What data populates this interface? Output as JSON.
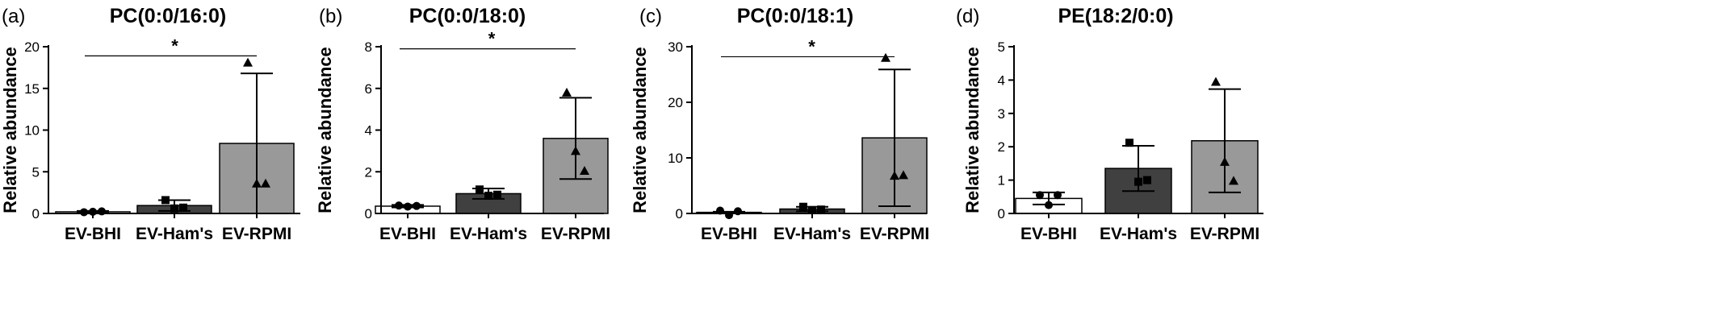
{
  "chart_data": [
    {
      "type": "bar",
      "panel": "(a)",
      "title": "PC(0:0/16:0)",
      "ylabel": "Relative abundance",
      "categories": [
        "EV-BHI",
        "EV-Ham's",
        "EV-RPMI"
      ],
      "ylim": [
        0,
        20
      ],
      "yticks": [
        0,
        5,
        10,
        15,
        20
      ],
      "means": [
        0.2,
        0.95,
        8.4
      ],
      "sd": [
        0.1,
        0.65,
        8.4
      ],
      "points": [
        [
          0.15,
          0.2,
          0.25
        ],
        [
          1.6,
          0.6,
          0.7
        ],
        [
          18.1,
          3.6,
          3.6
        ]
      ],
      "bar_colors": [
        "#ffffff",
        "#404040",
        "#999999"
      ],
      "markers": [
        "circle",
        "square",
        "triangle"
      ],
      "significance": {
        "from": 0,
        "to": 2,
        "label": "*",
        "y": 18.9
      }
    },
    {
      "type": "bar",
      "panel": "(b)",
      "title": "PC(0:0/18:0)",
      "ylabel": "Relative abundance",
      "categories": [
        "EV-BHI",
        "EV-Ham's",
        "EV-RPMI"
      ],
      "ylim": [
        0,
        8
      ],
      "yticks": [
        0,
        2,
        4,
        6,
        8
      ],
      "means": [
        0.35,
        0.95,
        3.6
      ],
      "sd": [
        0.06,
        0.25,
        1.95
      ],
      "points": [
        [
          0.38,
          0.33,
          0.36
        ],
        [
          1.15,
          0.85,
          0.9
        ],
        [
          5.8,
          3.0,
          2.05
        ]
      ],
      "bar_colors": [
        "#ffffff",
        "#404040",
        "#999999"
      ],
      "markers": [
        "circle",
        "square",
        "triangle"
      ],
      "significance": {
        "from": 0,
        "to": 2,
        "label": "*",
        "y": 7.9
      }
    },
    {
      "type": "bar",
      "panel": "(c)",
      "title": "PC(0:0/18:1)",
      "ylabel": "Relative abundance",
      "categories": [
        "EV-BHI",
        "EV-Ham's",
        "EV-RPMI"
      ],
      "ylim": [
        0,
        30
      ],
      "yticks": [
        0,
        10,
        20,
        30
      ],
      "means": [
        0.2,
        0.8,
        13.6
      ],
      "sd": [
        0.1,
        0.4,
        12.3
      ],
      "points": [
        [
          0.5,
          -0.3,
          0.4
        ],
        [
          1.2,
          0.6,
          0.7
        ],
        [
          28.0,
          6.8,
          6.9
        ]
      ],
      "bar_colors": [
        "#ffffff",
        "#404040",
        "#999999"
      ],
      "markers": [
        "circle",
        "square",
        "triangle"
      ],
      "significance": {
        "from": 0,
        "to": 2,
        "label": "*",
        "y": 28.2
      }
    },
    {
      "type": "bar",
      "panel": "(d)",
      "title": "PE(18:2/0:0)",
      "ylabel": "Relative abundance",
      "categories": [
        "EV-BHI",
        "EV-Ham's",
        "EV-RPMI"
      ],
      "ylim": [
        0,
        5
      ],
      "yticks": [
        0,
        1,
        2,
        3,
        4,
        5
      ],
      "means": [
        0.45,
        1.35,
        2.18
      ],
      "sd": [
        0.18,
        0.68,
        1.55
      ],
      "points": [
        [
          0.55,
          0.25,
          0.55
        ],
        [
          2.12,
          0.95,
          1.0
        ],
        [
          3.95,
          1.55,
          0.98
        ]
      ],
      "bar_colors": [
        "#ffffff",
        "#404040",
        "#999999"
      ],
      "markers": [
        "circle",
        "square",
        "triangle"
      ],
      "significance": null
    }
  ]
}
